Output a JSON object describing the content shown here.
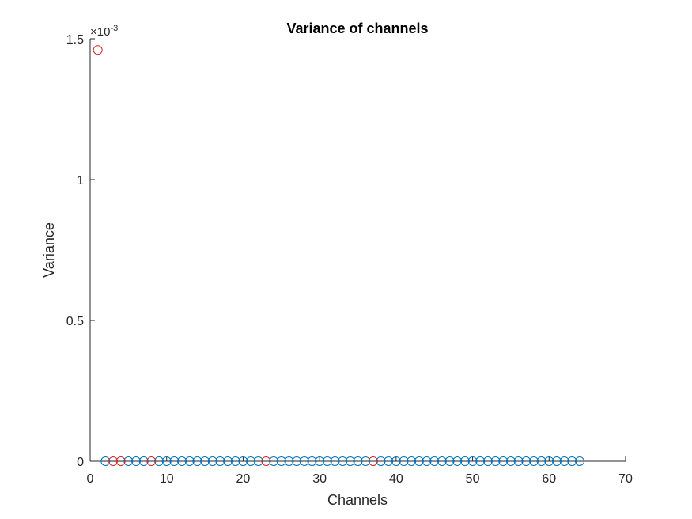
{
  "chart_data": {
    "type": "scatter",
    "title": "Variance of channels",
    "xlabel": "Channels",
    "ylabel": "Variance",
    "xlim": [
      0,
      70
    ],
    "ylim": [
      0,
      0.0015
    ],
    "xticks": [
      0,
      10,
      20,
      30,
      40,
      50,
      60,
      70
    ],
    "xtick_labels": [
      "0",
      "10",
      "20",
      "30",
      "40",
      "50",
      "60",
      "70"
    ],
    "yticks": [
      0,
      0.0005,
      0.001,
      0.0015
    ],
    "ytick_labels": [
      "0",
      "0.5",
      "1",
      "1.5"
    ],
    "y_exponent": {
      "base": "×10",
      "power": "-3"
    },
    "grid": false,
    "series": [
      {
        "color": "#0072BD",
        "marker": "circle-open",
        "x": [
          2,
          5,
          6,
          7,
          9,
          10,
          11,
          12,
          13,
          14,
          15,
          16,
          17,
          18,
          19,
          20,
          21,
          22,
          24,
          25,
          26,
          27,
          28,
          29,
          30,
          31,
          32,
          33,
          34,
          35,
          36,
          38,
          39,
          40,
          41,
          42,
          43,
          44,
          45,
          46,
          47,
          48,
          49,
          50,
          51,
          52,
          53,
          54,
          55,
          56,
          57,
          58,
          59,
          60,
          61,
          62,
          63,
          64
        ],
        "y": [
          0,
          0,
          0,
          0,
          0,
          0,
          0,
          0,
          0,
          0,
          0,
          0,
          0,
          0,
          0,
          0,
          0,
          0,
          0,
          0,
          0,
          0,
          0,
          0,
          0,
          0,
          0,
          0,
          0,
          0,
          0,
          0,
          0,
          0,
          0,
          0,
          0,
          0,
          0,
          0,
          0,
          0,
          0,
          0,
          0,
          0,
          0,
          0,
          0,
          0,
          0,
          0,
          0,
          0,
          0,
          0,
          0,
          0
        ]
      },
      {
        "color": "#D62728",
        "marker": "circle-open",
        "x": [
          1,
          3,
          4,
          8,
          23,
          37
        ],
        "y": [
          0.00146,
          0,
          0,
          0,
          0,
          0
        ]
      }
    ]
  }
}
